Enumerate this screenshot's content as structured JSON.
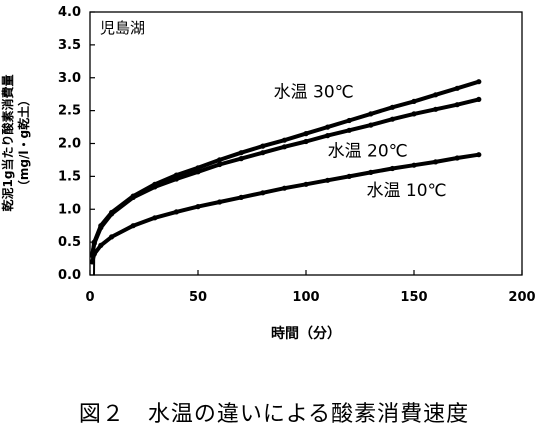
{
  "caption": "図２　水温の違いによる酸素消費速度",
  "chart_data": {
    "type": "line",
    "panel_label": "児島湖",
    "xlabel": "時間（分）",
    "ylabel": "乾泥1g当たり酸素消費量",
    "ylabel_unit": "（mg/l・g乾土）",
    "xlim": [
      0,
      200
    ],
    "ylim": [
      0.0,
      4.0
    ],
    "x_ticks": [
      0,
      50,
      100,
      150,
      200
    ],
    "y_ticks": [
      "0.0",
      "0.5",
      "1.0",
      "1.5",
      "2.0",
      "2.5",
      "3.0",
      "3.5",
      "4.0"
    ],
    "grid": false,
    "x": [
      1,
      2,
      5,
      10,
      20,
      30,
      40,
      50,
      60,
      70,
      80,
      90,
      100,
      110,
      120,
      130,
      140,
      150,
      160,
      170,
      180
    ],
    "series": [
      {
        "name": "水温 30℃",
        "values": [
          0.3,
          0.5,
          0.75,
          0.95,
          1.2,
          1.38,
          1.52,
          1.63,
          1.75,
          1.86,
          1.96,
          2.05,
          2.15,
          2.25,
          2.35,
          2.45,
          2.55,
          2.64,
          2.74,
          2.84,
          2.94
        ]
      },
      {
        "name": "水温 20℃",
        "values": [
          0.3,
          0.48,
          0.72,
          0.93,
          1.18,
          1.34,
          1.46,
          1.57,
          1.68,
          1.77,
          1.86,
          1.95,
          2.03,
          2.12,
          2.2,
          2.28,
          2.37,
          2.45,
          2.52,
          2.59,
          2.67
        ]
      },
      {
        "name": "水温 10℃",
        "values": [
          0.2,
          0.32,
          0.45,
          0.58,
          0.75,
          0.87,
          0.96,
          1.04,
          1.11,
          1.18,
          1.25,
          1.32,
          1.38,
          1.44,
          1.5,
          1.56,
          1.62,
          1.67,
          1.72,
          1.78,
          1.83
        ]
      }
    ]
  }
}
